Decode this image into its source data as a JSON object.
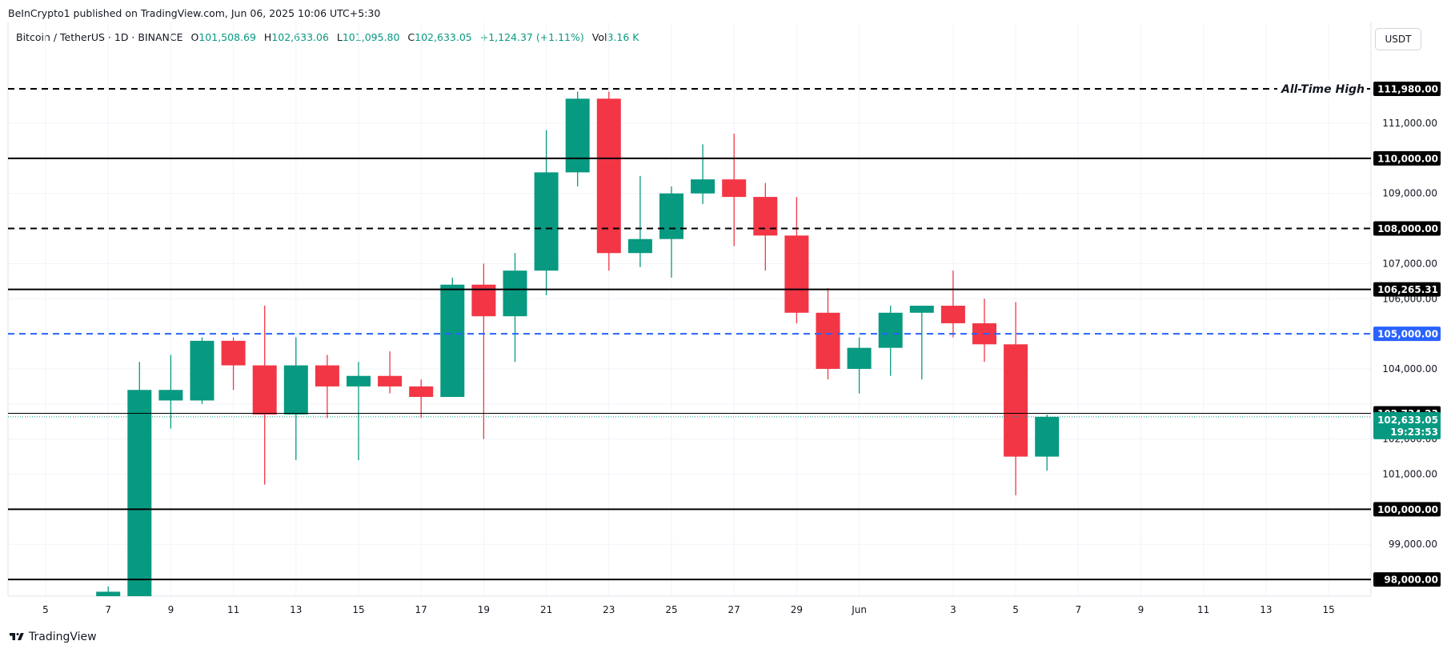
{
  "publisher": "BeInCrypto1 published on TradingView.com, Jun 06, 2025 10:06 UTC+5:30",
  "legend": {
    "symbol": "Bitcoin / TetherUS · 1D · BINANCE",
    "o_label": "O",
    "o_value": "101,508.69",
    "h_label": "H",
    "h_value": "102,633.06",
    "l_label": "L",
    "l_value": "101,095.80",
    "c_label": "C",
    "c_value": "102,633.05",
    "change": "+1,124.37 (+1.11%)",
    "vol_label": "Vol",
    "vol_value": "3.16 K"
  },
  "currency_button": "USDT",
  "footer_logo": "TradingView",
  "colors": {
    "up": "#089981",
    "down": "#f23645",
    "level": "#000000",
    "highlight": "#2962ff"
  },
  "chart_data": {
    "type": "candlestick",
    "ylim": [
      97300,
      112800
    ],
    "ytick_values": [
      99000,
      101000,
      102000,
      104000,
      106000,
      107000,
      109000,
      111000
    ],
    "ytick_labels": [
      "99,000.00",
      "101,000.00",
      "102,000.00",
      "104,000.00",
      "106,000.00",
      "107,000.00",
      "109,000.00",
      "111,000.00"
    ],
    "x_day_start": 4,
    "x_day_end": 42,
    "xtick_days": [
      5,
      7,
      9,
      11,
      13,
      15,
      17,
      19,
      21,
      23,
      25,
      27,
      29,
      31,
      34,
      36,
      38,
      40,
      42,
      44,
      46
    ],
    "xtick_labels": [
      "5",
      "7",
      "9",
      "11",
      "13",
      "15",
      "17",
      "19",
      "21",
      "23",
      "25",
      "27",
      "29",
      "Jun",
      "3",
      "5",
      "7",
      "9",
      "11",
      "13",
      "15"
    ],
    "candles": [
      {
        "day": 7,
        "open": 97500,
        "high": 97800,
        "low": 97300,
        "close": 97650
      },
      {
        "day": 8,
        "open": 97300,
        "high": 104200,
        "low": 97300,
        "close": 103400
      },
      {
        "day": 9,
        "open": 103100,
        "high": 104400,
        "low": 102300,
        "close": 103400
      },
      {
        "day": 10,
        "open": 103100,
        "high": 104900,
        "low": 103000,
        "close": 104800
      },
      {
        "day": 11,
        "open": 104800,
        "high": 104900,
        "low": 103400,
        "close": 104100
      },
      {
        "day": 12,
        "open": 104100,
        "high": 105800,
        "low": 100700,
        "close": 102700
      },
      {
        "day": 13,
        "open": 102700,
        "high": 104900,
        "low": 101400,
        "close": 104100
      },
      {
        "day": 14,
        "open": 104100,
        "high": 104400,
        "low": 102600,
        "close": 103500
      },
      {
        "day": 15,
        "open": 103500,
        "high": 104200,
        "low": 101400,
        "close": 103800
      },
      {
        "day": 16,
        "open": 103800,
        "high": 104500,
        "low": 103300,
        "close": 103500
      },
      {
        "day": 17,
        "open": 103500,
        "high": 103700,
        "low": 102600,
        "close": 103200
      },
      {
        "day": 18,
        "open": 103200,
        "high": 106600,
        "low": 103200,
        "close": 106400
      },
      {
        "day": 19,
        "open": 106400,
        "high": 107000,
        "low": 102000,
        "close": 105500
      },
      {
        "day": 20,
        "open": 105500,
        "high": 107300,
        "low": 104200,
        "close": 106800
      },
      {
        "day": 21,
        "open": 106800,
        "high": 110800,
        "low": 106100,
        "close": 109600
      },
      {
        "day": 22,
        "open": 109600,
        "high": 111900,
        "low": 109200,
        "close": 111700
      },
      {
        "day": 23,
        "open": 111700,
        "high": 111900,
        "low": 106800,
        "close": 107300
      },
      {
        "day": 24,
        "open": 107300,
        "high": 109500,
        "low": 106900,
        "close": 107700
      },
      {
        "day": 25,
        "open": 107700,
        "high": 109200,
        "low": 106600,
        "close": 109000
      },
      {
        "day": 26,
        "open": 109000,
        "high": 110400,
        "low": 108700,
        "close": 109400
      },
      {
        "day": 27,
        "open": 109400,
        "high": 110700,
        "low": 107500,
        "close": 108900
      },
      {
        "day": 28,
        "open": 108900,
        "high": 109300,
        "low": 106800,
        "close": 107800
      },
      {
        "day": 29,
        "open": 107800,
        "high": 108900,
        "low": 105300,
        "close": 105600
      },
      {
        "day": 30,
        "open": 105600,
        "high": 106300,
        "low": 103700,
        "close": 104000
      },
      {
        "day": 31,
        "open": 104000,
        "high": 104900,
        "low": 103300,
        "close": 104600
      },
      {
        "day": 32,
        "open": 104600,
        "high": 105800,
        "low": 103800,
        "close": 105600
      },
      {
        "day": 33,
        "open": 105600,
        "high": 105800,
        "low": 103700,
        "close": 105800
      },
      {
        "day": 34,
        "open": 105800,
        "high": 106800,
        "low": 104900,
        "close": 105300
      },
      {
        "day": 35,
        "open": 105300,
        "high": 106000,
        "low": 104200,
        "close": 104700
      },
      {
        "day": 36,
        "open": 104700,
        "high": 105900,
        "low": 100400,
        "close": 101500
      },
      {
        "day": 37,
        "open": 101500,
        "high": 102700,
        "low": 101100,
        "close": 102633
      }
    ],
    "levels": [
      {
        "value": 111980,
        "label": "111,980.00",
        "style": "dashed",
        "color": "#000000",
        "annotation": "All-Time High"
      },
      {
        "value": 110000,
        "label": "110,000.00",
        "style": "solid",
        "color": "#000000"
      },
      {
        "value": 108000,
        "label": "108,000.00",
        "style": "dashed",
        "color": "#000000"
      },
      {
        "value": 106265.31,
        "label": "106,265.31",
        "style": "solid",
        "color": "#000000"
      },
      {
        "value": 105000,
        "label": "105,000.00",
        "style": "dashed",
        "color": "#2962ff"
      },
      {
        "value": 102734.23,
        "label": "102,734.23",
        "style": "thin",
        "color": "#000000"
      },
      {
        "value": 100000,
        "label": "100,000.00",
        "style": "solid",
        "color": "#000000"
      },
      {
        "value": 98000,
        "label": "98,000.00",
        "style": "solid",
        "color": "#000000"
      }
    ],
    "last_price": {
      "value": 102633.05,
      "label": "102,633.05",
      "countdown": "19:23:53"
    }
  }
}
